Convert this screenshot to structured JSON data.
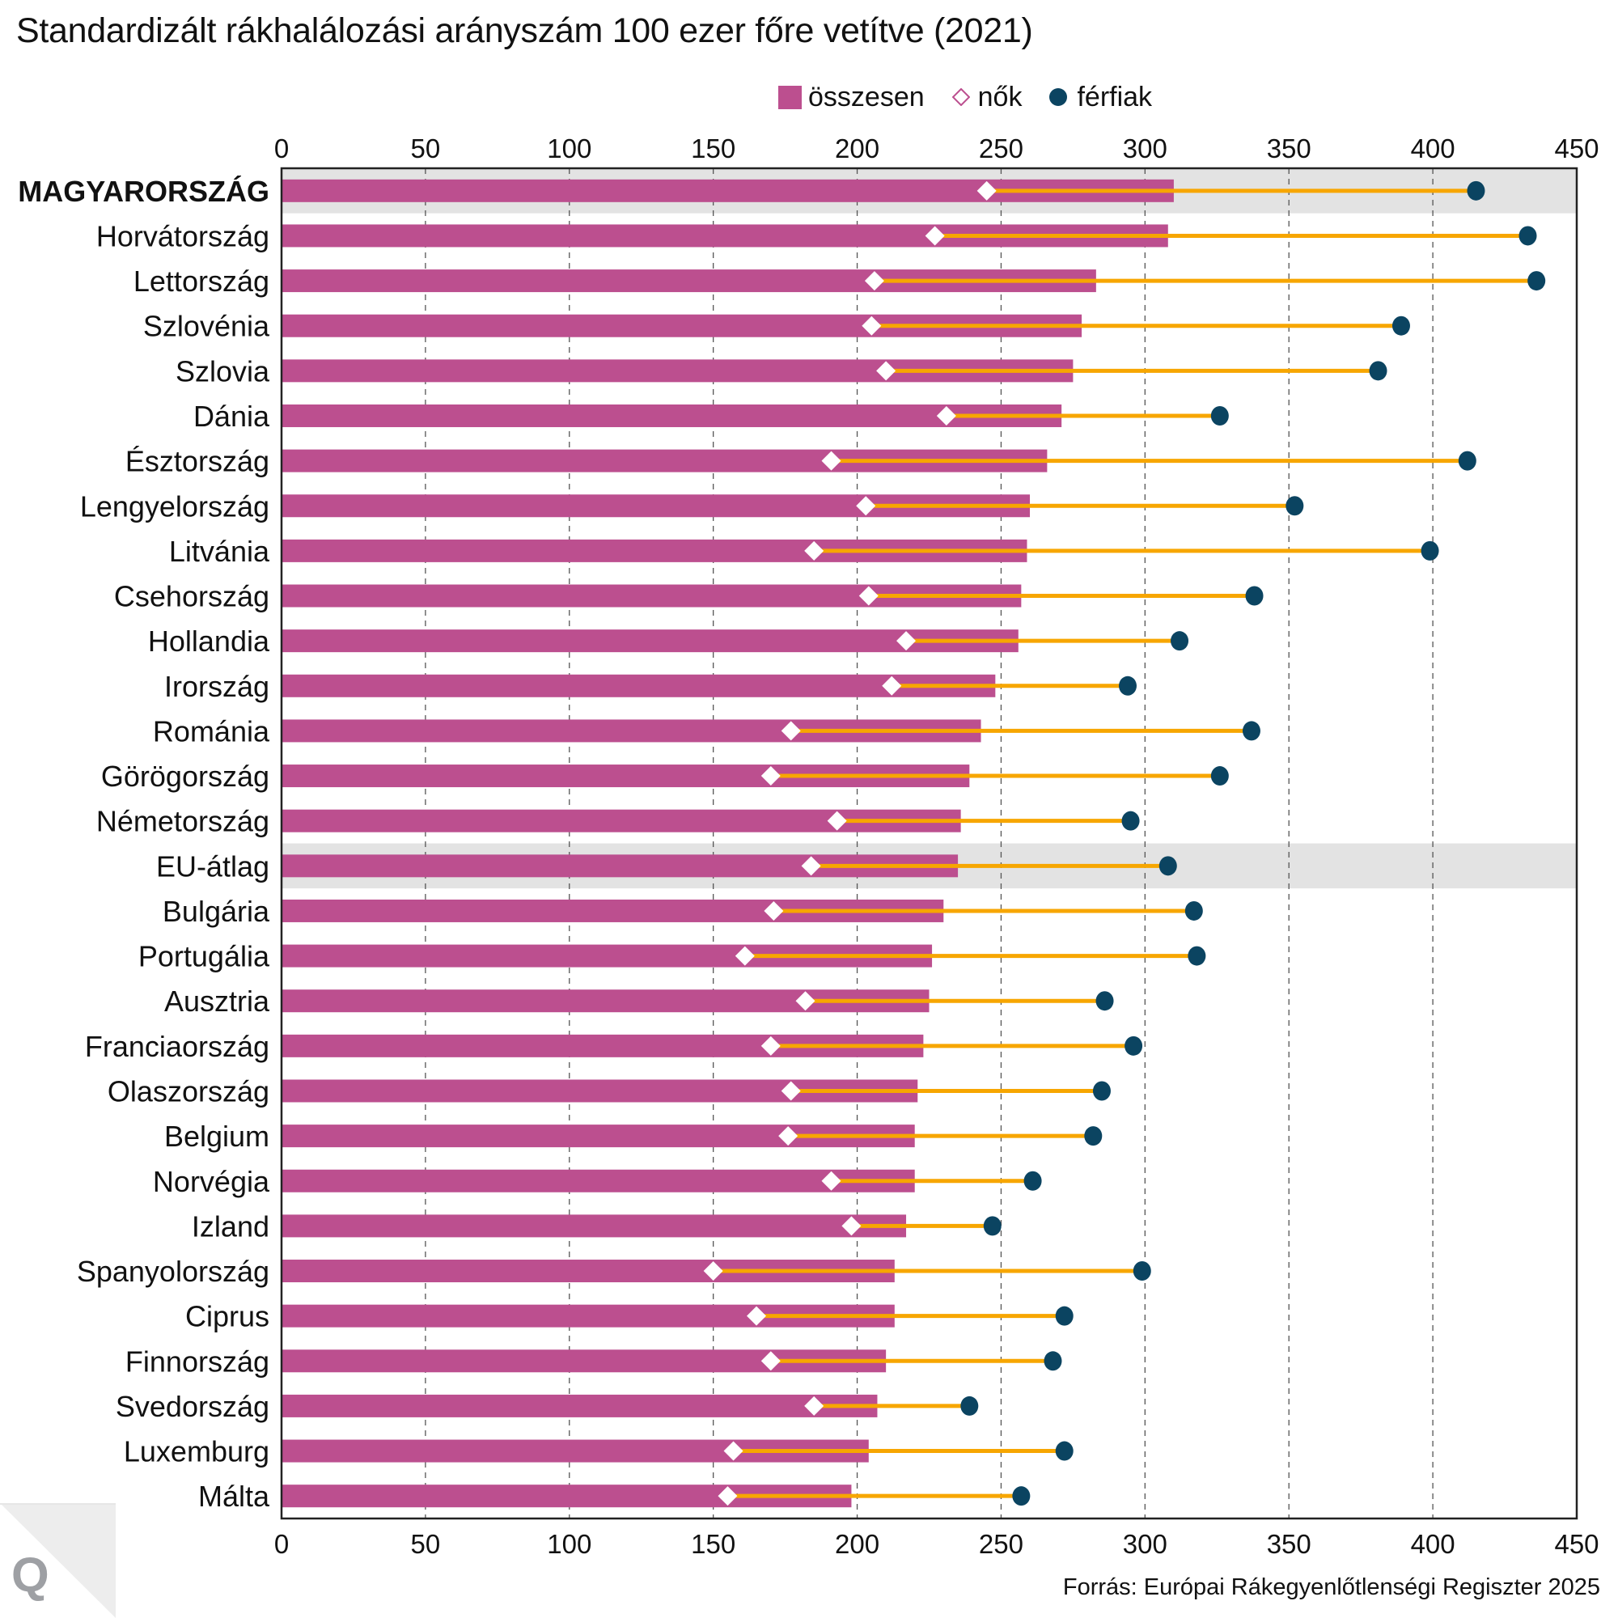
{
  "chart_data": {
    "type": "bar",
    "subtype": "horizontal bar with dumbbell overlay",
    "title": "Standardizált rákhalálozási arányszám 100 ezer főre vetítve (2021)",
    "xlabel": "",
    "ylabel": "",
    "xlim": [
      0,
      450
    ],
    "xticks": [
      0,
      50,
      100,
      150,
      200,
      250,
      300,
      350,
      400,
      450
    ],
    "xtick_labels": [
      "0",
      "50",
      "100",
      "150",
      "200",
      "250",
      "300",
      "350",
      "400",
      "450"
    ],
    "grid": "vertical dashed",
    "legend_position": "top-right",
    "legend": [
      {
        "key": "total",
        "label": "összesen",
        "marker": "bar",
        "color": "#bc4f8f"
      },
      {
        "key": "women",
        "label": "nők",
        "marker": "diamond",
        "color": "#ffffff",
        "stroke": "#bc4f8f"
      },
      {
        "key": "men",
        "label": "férfiak",
        "marker": "dot",
        "color": "#0b4461"
      }
    ],
    "connector_color": "#f7a600",
    "highlight_band_color": "#e3e3e3",
    "categories": [
      "MAGYARORSZÁG",
      "Horvátország",
      "Lettország",
      "Szlovénia",
      "Szlovia",
      "Dánia",
      "Észtország",
      "Lengyelország",
      "Litvánia",
      "Csehország",
      "Hollandia",
      "Irország",
      "Románia",
      "Görögország",
      "Németország",
      "EU-átlag",
      "Bulgária",
      "Portugália",
      "Ausztria",
      "Franciaország",
      "Olaszország",
      "Belgium",
      "Norvégia",
      "Izland",
      "Spanyolország",
      "Ciprus",
      "Finnország",
      "Svedország",
      "Luxemburg",
      "Málta"
    ],
    "highlighted": [
      "MAGYARORSZÁG",
      "EU-átlag"
    ],
    "bold_categories": [
      "MAGYARORSZÁG"
    ],
    "series": [
      {
        "name": "összesen",
        "values": [
          310,
          308,
          283,
          278,
          275,
          271,
          266,
          260,
          259,
          257,
          256,
          248,
          243,
          239,
          236,
          235,
          230,
          226,
          225,
          223,
          221,
          220,
          220,
          217,
          213,
          213,
          210,
          207,
          204,
          198
        ]
      },
      {
        "name": "nők",
        "values": [
          245,
          227,
          206,
          205,
          210,
          231,
          191,
          203,
          185,
          204,
          217,
          212,
          177,
          170,
          193,
          184,
          171,
          161,
          182,
          170,
          177,
          176,
          191,
          198,
          150,
          165,
          170,
          185,
          157,
          155
        ]
      },
      {
        "name": "férfiak",
        "values": [
          415,
          433,
          436,
          389,
          381,
          326,
          412,
          352,
          399,
          338,
          312,
          294,
          337,
          326,
          295,
          308,
          317,
          318,
          286,
          296,
          285,
          282,
          261,
          247,
          299,
          272,
          268,
          239,
          272,
          257
        ]
      }
    ]
  },
  "source": "Forrás: Európai Rákegyenlőtlenségi Regiszter 2025",
  "logo": {
    "letter": "Q",
    "icon": "publisher-logo-q"
  }
}
